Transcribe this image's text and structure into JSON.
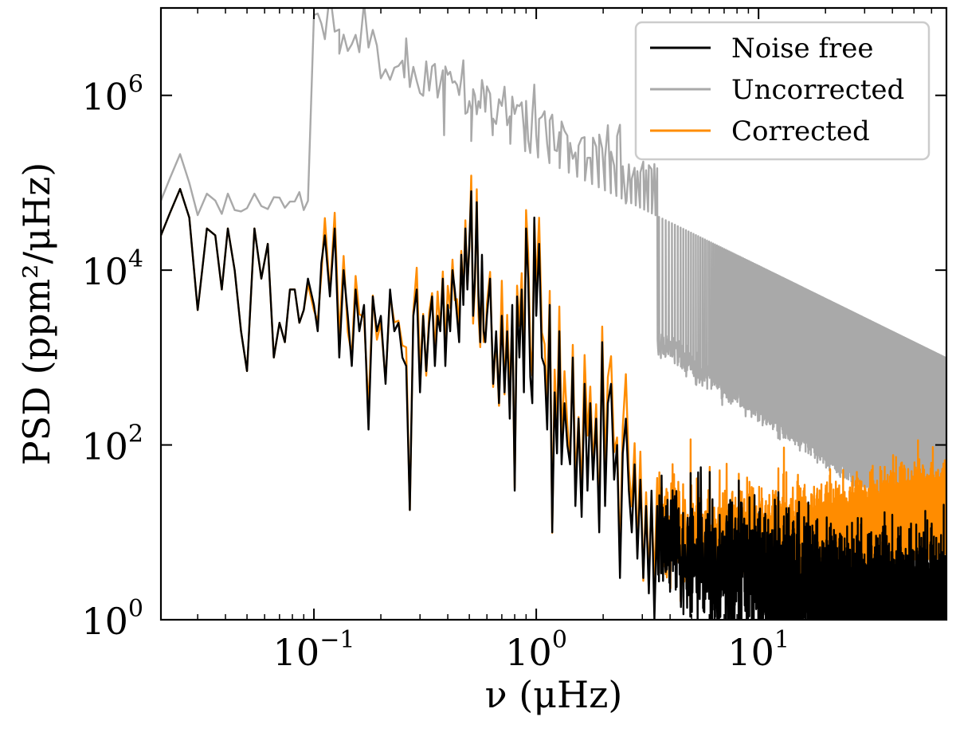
{
  "chart_data": {
    "type": "line",
    "title": "",
    "xlabel": "ν (μHz)",
    "ylabel": "PSD (ppm²/μHz)",
    "xscale": "log",
    "yscale": "log",
    "xlim": [
      0.0205,
      70
    ],
    "ylim": [
      1,
      10000000
    ],
    "x_ticks": [
      {
        "base": "10",
        "exp": "−1",
        "value": 0.1
      },
      {
        "base": "10",
        "exp": "0",
        "value": 1
      },
      {
        "base": "10",
        "exp": "1",
        "value": 10
      }
    ],
    "y_ticks": [
      {
        "base": "10",
        "exp": "0",
        "value": 1
      },
      {
        "base": "10",
        "exp": "2",
        "value": 100
      },
      {
        "base": "10",
        "exp": "4",
        "value": 10000
      },
      {
        "base": "10",
        "exp": "6",
        "value": 1000000
      }
    ],
    "legend_position": "top-right",
    "grid": false,
    "series": [
      {
        "name": "Noise free",
        "color": "#000000"
      },
      {
        "name": "Uncorrected",
        "color": "#a9a9a9"
      },
      {
        "name": "Corrected",
        "color": "#ff8c00"
      }
    ],
    "series_data": {
      "noise_free_low": {
        "x": [
          0.0205,
          0.0225,
          0.025,
          0.0275,
          0.03,
          0.033,
          0.036,
          0.0385,
          0.041,
          0.044,
          0.047,
          0.05,
          0.054,
          0.058,
          0.062,
          0.066,
          0.07,
          0.074,
          0.078,
          0.082,
          0.086,
          0.09,
          0.094,
          0.1,
          0.104,
          0.108,
          0.112,
          0.118,
          0.124,
          0.13,
          0.136,
          0.142,
          0.148,
          0.154,
          0.16,
          0.168,
          0.176,
          0.184,
          0.192,
          0.2,
          0.21,
          0.22,
          0.23,
          0.24,
          0.25,
          0.26,
          0.27,
          0.28,
          0.29,
          0.3,
          0.31,
          0.32,
          0.33,
          0.34,
          0.35,
          0.36,
          0.37,
          0.38,
          0.39,
          0.4,
          0.41,
          0.42,
          0.43,
          0.44,
          0.45,
          0.46,
          0.47,
          0.48,
          0.49,
          0.5,
          0.51,
          0.52,
          0.53,
          0.54,
          0.55,
          0.56,
          0.57,
          0.58,
          0.59,
          0.6,
          0.62,
          0.64,
          0.66,
          0.68,
          0.7,
          0.72,
          0.74,
          0.76,
          0.78,
          0.8,
          0.82,
          0.84,
          0.86,
          0.88,
          0.9,
          0.92,
          0.94,
          0.96,
          0.98,
          1.0,
          1.03,
          1.06,
          1.09,
          1.12,
          1.15,
          1.18,
          1.21,
          1.24,
          1.27,
          1.3,
          1.34,
          1.38,
          1.42,
          1.46,
          1.5,
          1.55,
          1.6,
          1.65,
          1.7,
          1.75,
          1.8,
          1.86,
          1.92,
          1.98,
          2.04,
          2.1,
          2.17,
          2.24,
          2.31,
          2.38,
          2.45,
          2.53,
          2.61,
          2.69,
          2.77,
          2.85,
          2.94,
          3.03,
          3.12,
          3.21,
          3.3,
          3.4,
          3.5
        ],
        "y": [
          25000,
          45000,
          85000,
          40000,
          3500,
          30000,
          25000,
          6000,
          30000,
          10000,
          2000,
          700,
          30000,
          8000,
          20000,
          1000,
          2500,
          1500,
          6000,
          6000,
          2500,
          3500,
          8000,
          4000,
          2000,
          12000,
          25000,
          5000,
          30000,
          1000,
          10000,
          3000,
          800,
          6000,
          2000,
          4000,
          150,
          5000,
          2000,
          3000,
          500,
          6000,
          2000,
          2500,
          1000,
          800,
          18,
          3000,
          6000,
          400,
          3000,
          700,
          2500,
          5000,
          800,
          3000,
          2000,
          8000,
          800,
          4000,
          2000,
          10000,
          6000,
          3000,
          1500,
          15000,
          4000,
          30000,
          6000,
          20000,
          80000,
          3000,
          8000,
          60000,
          5000,
          1500,
          15000,
          2000,
          1500,
          3000,
          8000,
          500,
          2000,
          300,
          3000,
          400,
          2000,
          200,
          4000,
          30,
          5000,
          1000,
          6000,
          400,
          30000,
          8000,
          600,
          300,
          40000,
          3000,
          20000,
          1000,
          800,
          150,
          4000,
          10,
          400,
          80,
          2000,
          60,
          300,
          100,
          60,
          1000,
          20,
          200,
          15,
          500,
          30,
          300,
          40,
          200,
          10,
          1500,
          20,
          300,
          500,
          40,
          100,
          3,
          80,
          200,
          30,
          10,
          60,
          5,
          40,
          3,
          20,
          2,
          30,
          1,
          20
        ]
      }
    }
  }
}
